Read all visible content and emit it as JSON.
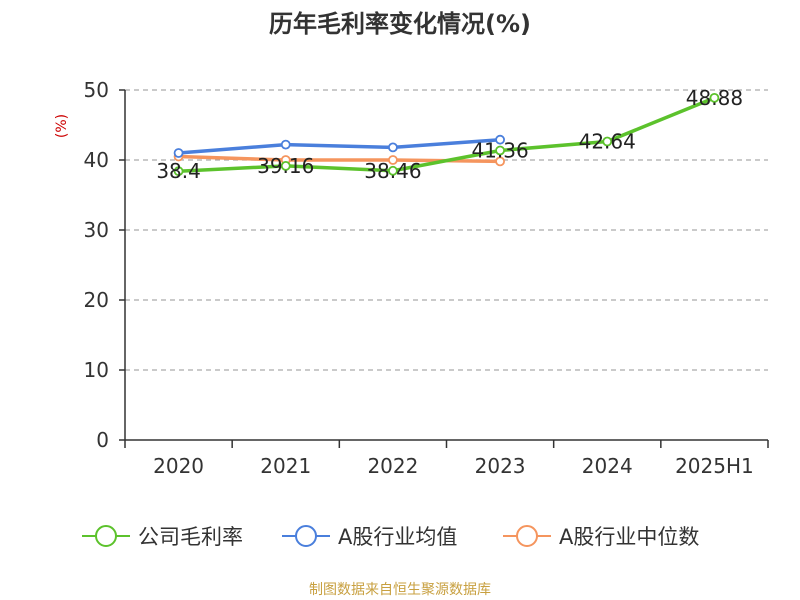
{
  "chart_data": {
    "type": "line",
    "title": "历年毛利率变化情况(%)",
    "ylabel": "(%)",
    "ylim": [
      0,
      50
    ],
    "yticks": [
      "0",
      "10",
      "20",
      "30",
      "40",
      "50"
    ],
    "categories": [
      "2020",
      "2021",
      "2022",
      "2023",
      "2024",
      "2025H1"
    ],
    "grid": "horizontal dashed",
    "legend_position": "bottom",
    "series": [
      {
        "name": "公司毛利率",
        "color": "#5cc22c",
        "values": [
          38.4,
          39.16,
          38.46,
          41.36,
          42.64,
          48.88
        ],
        "labels": [
          "38.4",
          "39.16",
          "38.46",
          "41.36",
          "42.64",
          "48.88"
        ]
      },
      {
        "name": "A股行业均值",
        "color": "#4a7fdc",
        "values": [
          41.0,
          42.2,
          41.8,
          42.9,
          null,
          null
        ],
        "labels": []
      },
      {
        "name": "A股行业中位数",
        "color": "#f5955e",
        "values": [
          40.5,
          40.0,
          40.0,
          39.8,
          null,
          null
        ],
        "labels": []
      }
    ]
  },
  "source": "制图数据来自恒生聚源数据库",
  "colors": {
    "axis": "#333333",
    "grid": "#aaaaaa",
    "unit": "#cc0000",
    "source": "#c8a040"
  }
}
